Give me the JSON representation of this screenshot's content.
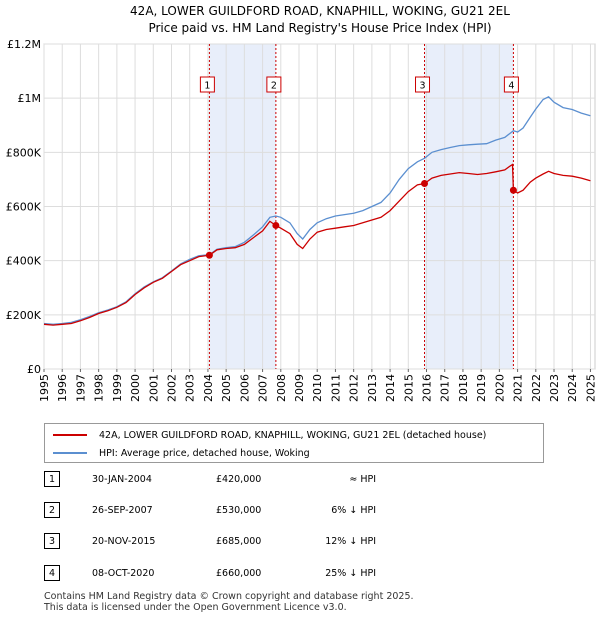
{
  "chart_data": {
    "type": "line",
    "title": "42A, LOWER GUILDFORD ROAD, KNAPHILL, WOKING, GU21 2EL",
    "subtitle": "Price paid vs. HM Land Registry's House Price Index (HPI)",
    "xlabel": "",
    "ylabel": "",
    "xlim": [
      1995,
      2025.25
    ],
    "ylim": [
      0,
      1200000
    ],
    "grid": true,
    "x_ticks": [
      "1995",
      "1996",
      "1997",
      "1998",
      "1999",
      "2000",
      "2001",
      "2002",
      "2003",
      "2004",
      "2005",
      "2006",
      "2007",
      "2008",
      "2009",
      "2010",
      "2011",
      "2012",
      "2013",
      "2014",
      "2015",
      "2016",
      "2017",
      "2018",
      "2019",
      "2020",
      "2021",
      "2022",
      "2023",
      "2024",
      "2025"
    ],
    "y_ticks": [
      {
        "value": 0,
        "label": "£0"
      },
      {
        "value": 200000,
        "label": "£200K"
      },
      {
        "value": 400000,
        "label": "£400K"
      },
      {
        "value": 600000,
        "label": "£600K"
      },
      {
        "value": 800000,
        "label": "£800K"
      },
      {
        "value": 1000000,
        "label": "£1M"
      },
      {
        "value": 1200000,
        "label": "£1.2M"
      }
    ],
    "shaded_periods": [
      [
        2004.08,
        2007.73
      ],
      [
        2015.89,
        2020.77
      ]
    ],
    "series": [
      {
        "name": "42A, LOWER GUILDFORD ROAD, KNAPHILL, WOKING, GU21 2EL (detached house)",
        "color": "#cc0000",
        "points": [
          [
            1995.0,
            165000
          ],
          [
            1995.5,
            162000
          ],
          [
            1996.0,
            165000
          ],
          [
            1996.5,
            168000
          ],
          [
            1997.0,
            178000
          ],
          [
            1997.5,
            190000
          ],
          [
            1998.0,
            205000
          ],
          [
            1998.5,
            215000
          ],
          [
            1999.0,
            228000
          ],
          [
            1999.5,
            245000
          ],
          [
            2000.0,
            275000
          ],
          [
            2000.5,
            300000
          ],
          [
            2001.0,
            320000
          ],
          [
            2001.5,
            335000
          ],
          [
            2002.0,
            360000
          ],
          [
            2002.5,
            385000
          ],
          [
            2003.0,
            400000
          ],
          [
            2003.5,
            415000
          ],
          [
            2004.08,
            420000
          ],
          [
            2004.5,
            440000
          ],
          [
            2005.0,
            445000
          ],
          [
            2005.5,
            448000
          ],
          [
            2006.0,
            460000
          ],
          [
            2006.5,
            485000
          ],
          [
            2007.0,
            510000
          ],
          [
            2007.4,
            545000
          ],
          [
            2007.73,
            530000
          ],
          [
            2008.0,
            520000
          ],
          [
            2008.5,
            500000
          ],
          [
            2008.9,
            460000
          ],
          [
            2009.2,
            445000
          ],
          [
            2009.6,
            480000
          ],
          [
            2010.0,
            505000
          ],
          [
            2010.5,
            515000
          ],
          [
            2011.0,
            520000
          ],
          [
            2011.5,
            525000
          ],
          [
            2012.0,
            530000
          ],
          [
            2012.5,
            540000
          ],
          [
            2013.0,
            550000
          ],
          [
            2013.5,
            560000
          ],
          [
            2014.0,
            585000
          ],
          [
            2014.5,
            620000
          ],
          [
            2015.0,
            655000
          ],
          [
            2015.5,
            680000
          ],
          [
            2015.89,
            685000
          ],
          [
            2016.3,
            705000
          ],
          [
            2016.8,
            715000
          ],
          [
            2017.3,
            720000
          ],
          [
            2017.8,
            725000
          ],
          [
            2018.3,
            722000
          ],
          [
            2018.8,
            718000
          ],
          [
            2019.3,
            722000
          ],
          [
            2019.8,
            728000
          ],
          [
            2020.3,
            735000
          ],
          [
            2020.6,
            750000
          ],
          [
            2020.72,
            755000
          ],
          [
            2020.77,
            660000
          ],
          [
            2021.0,
            650000
          ],
          [
            2021.3,
            660000
          ],
          [
            2021.7,
            690000
          ],
          [
            2022.0,
            705000
          ],
          [
            2022.4,
            720000
          ],
          [
            2022.7,
            730000
          ],
          [
            2023.0,
            722000
          ],
          [
            2023.5,
            715000
          ],
          [
            2024.0,
            712000
          ],
          [
            2024.5,
            705000
          ],
          [
            2025.0,
            695000
          ]
        ]
      },
      {
        "name": "HPI: Average price, detached house, Woking",
        "color": "#5b8fd0",
        "points": [
          [
            1995.0,
            168000
          ],
          [
            1995.5,
            165000
          ],
          [
            1996.0,
            168000
          ],
          [
            1996.5,
            172000
          ],
          [
            1997.0,
            182000
          ],
          [
            1997.5,
            194000
          ],
          [
            1998.0,
            208000
          ],
          [
            1998.5,
            218000
          ],
          [
            1999.0,
            230000
          ],
          [
            1999.5,
            248000
          ],
          [
            2000.0,
            278000
          ],
          [
            2000.5,
            303000
          ],
          [
            2001.0,
            322000
          ],
          [
            2001.5,
            337000
          ],
          [
            2002.0,
            362000
          ],
          [
            2002.5,
            388000
          ],
          [
            2003.0,
            405000
          ],
          [
            2003.5,
            418000
          ],
          [
            2004.08,
            422000
          ],
          [
            2004.5,
            442000
          ],
          [
            2005.0,
            448000
          ],
          [
            2005.5,
            452000
          ],
          [
            2006.0,
            468000
          ],
          [
            2006.5,
            495000
          ],
          [
            2007.0,
            525000
          ],
          [
            2007.4,
            560000
          ],
          [
            2007.73,
            565000
          ],
          [
            2008.0,
            560000
          ],
          [
            2008.5,
            540000
          ],
          [
            2008.9,
            500000
          ],
          [
            2009.2,
            480000
          ],
          [
            2009.6,
            515000
          ],
          [
            2010.0,
            540000
          ],
          [
            2010.5,
            555000
          ],
          [
            2011.0,
            565000
          ],
          [
            2011.5,
            570000
          ],
          [
            2012.0,
            575000
          ],
          [
            2012.5,
            585000
          ],
          [
            2013.0,
            600000
          ],
          [
            2013.5,
            615000
          ],
          [
            2014.0,
            650000
          ],
          [
            2014.5,
            700000
          ],
          [
            2015.0,
            740000
          ],
          [
            2015.5,
            765000
          ],
          [
            2015.89,
            778000
          ],
          [
            2016.3,
            800000
          ],
          [
            2016.8,
            810000
          ],
          [
            2017.3,
            818000
          ],
          [
            2017.8,
            825000
          ],
          [
            2018.3,
            828000
          ],
          [
            2018.8,
            830000
          ],
          [
            2019.3,
            832000
          ],
          [
            2019.8,
            845000
          ],
          [
            2020.3,
            855000
          ],
          [
            2020.77,
            880000
          ],
          [
            2021.0,
            875000
          ],
          [
            2021.3,
            890000
          ],
          [
            2021.7,
            930000
          ],
          [
            2022.0,
            960000
          ],
          [
            2022.4,
            995000
          ],
          [
            2022.7,
            1005000
          ],
          [
            2023.0,
            985000
          ],
          [
            2023.5,
            965000
          ],
          [
            2024.0,
            958000
          ],
          [
            2024.5,
            945000
          ],
          [
            2025.0,
            935000
          ]
        ]
      }
    ],
    "sales": [
      {
        "label": "1",
        "x": 2004.08,
        "price": 420000
      },
      {
        "label": "2",
        "x": 2007.73,
        "price": 530000
      },
      {
        "label": "3",
        "x": 2015.89,
        "price": 685000
      },
      {
        "label": "4",
        "x": 2020.77,
        "price": 660000
      }
    ]
  },
  "legend": {
    "property_label": "42A, LOWER GUILDFORD ROAD, KNAPHILL, WOKING, GU21 2EL (detached house)",
    "hpi_label": "HPI: Average price, detached house, Woking"
  },
  "transactions": [
    {
      "num": "1",
      "date": "30-JAN-2004",
      "price": "£420,000",
      "hpi": "≈ HPI"
    },
    {
      "num": "2",
      "date": "26-SEP-2007",
      "price": "£530,000",
      "hpi": "6% ↓ HPI"
    },
    {
      "num": "3",
      "date": "20-NOV-2015",
      "price": "£685,000",
      "hpi": "12% ↓ HPI"
    },
    {
      "num": "4",
      "date": "08-OCT-2020",
      "price": "£660,000",
      "hpi": "25% ↓ HPI"
    }
  ],
  "footer": {
    "line1": "Contains HM Land Registry data © Crown copyright and database right 2025.",
    "line2": "This data is licensed under the Open Government Licence v3.0."
  }
}
